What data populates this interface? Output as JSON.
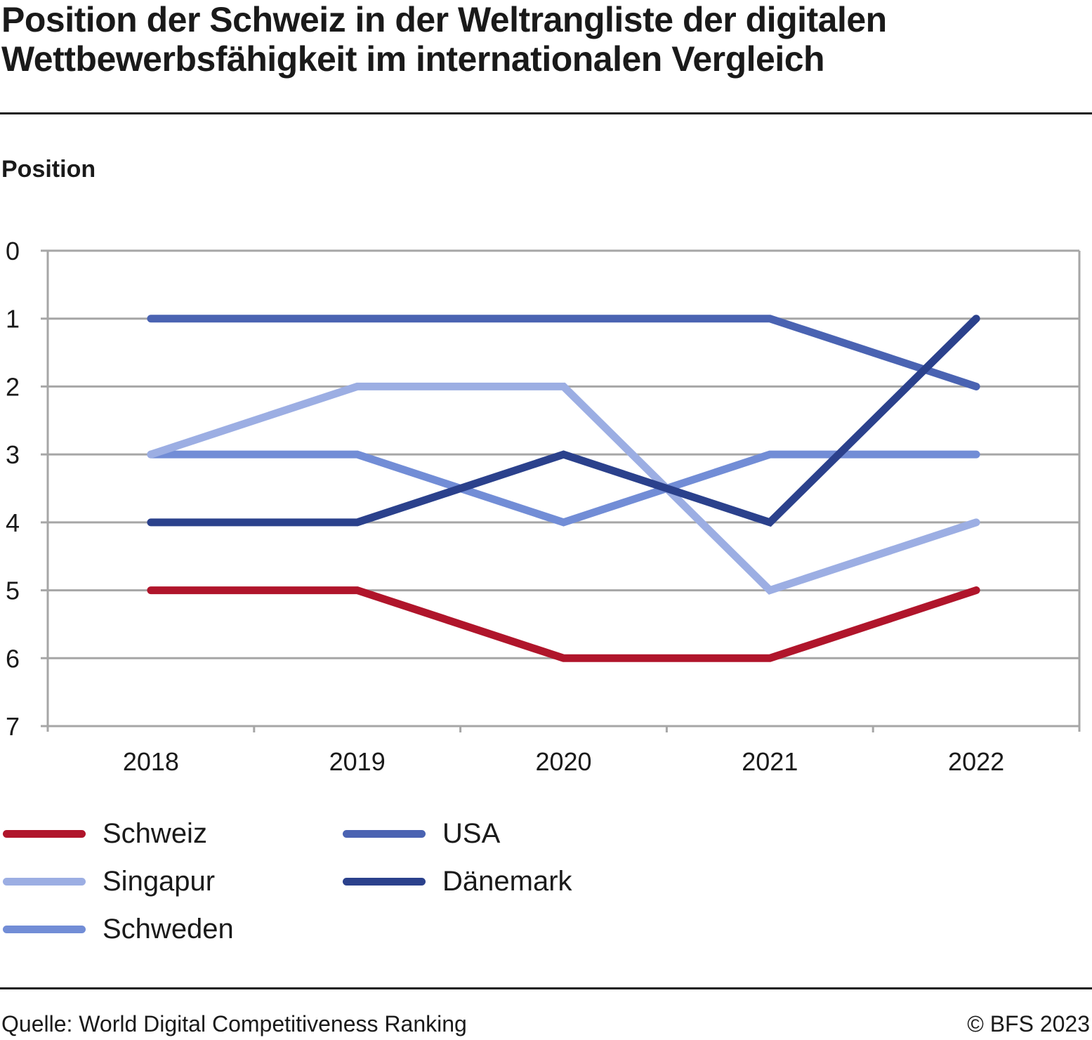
{
  "header": {
    "title": "Position der Schweiz in der Weltrangliste der digitalen Wettbewerbsfähigkeit im internationalen Vergleich",
    "y_axis_label": "Position"
  },
  "footer": {
    "source": "Quelle: World Digital Competitiveness Ranking",
    "copyright": "© BFS 2023"
  },
  "chart_data": {
    "type": "line",
    "title": "Position der Schweiz in der Weltrangliste der digitalen Wettbewerbsfähigkeit im internationalen Vergleich",
    "xlabel": "",
    "ylabel": "Position",
    "x": [
      "2018",
      "2019",
      "2020",
      "2021",
      "2022"
    ],
    "ylim": [
      0,
      7
    ],
    "y_inverted": true,
    "yticks": [
      0,
      1,
      2,
      3,
      4,
      5,
      6,
      7
    ],
    "grid": "horizontal",
    "legend_position": "bottom",
    "series": [
      {
        "name": "Schweiz",
        "color": "#b0152b",
        "values": [
          5,
          5,
          6,
          6,
          5
        ]
      },
      {
        "name": "USA",
        "color": "#4a63b2",
        "values": [
          1,
          1,
          1,
          1,
          2
        ]
      },
      {
        "name": "Singapur",
        "color": "#9caee3",
        "values": [
          3,
          2,
          2,
          5,
          4
        ]
      },
      {
        "name": "Dänemark",
        "color": "#2b418c",
        "values": [
          4,
          4,
          3,
          4,
          1
        ]
      },
      {
        "name": "Schweden",
        "color": "#728dd6",
        "values": [
          3,
          3,
          4,
          3,
          3
        ]
      }
    ]
  },
  "legend": {
    "items": [
      {
        "label": "Schweiz",
        "color": "#b0152b"
      },
      {
        "label": "Singapur",
        "color": "#9caee3"
      },
      {
        "label": "Schweden",
        "color": "#728dd6"
      },
      {
        "label": "USA",
        "color": "#4a63b2"
      },
      {
        "label": "Dänemark",
        "color": "#2b418c"
      }
    ]
  }
}
